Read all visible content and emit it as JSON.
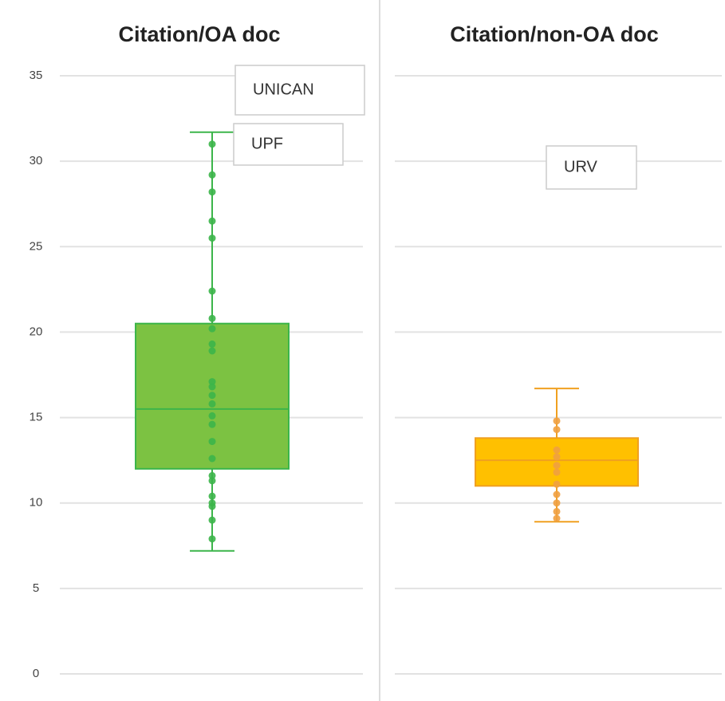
{
  "chart_data": [
    {
      "type": "box",
      "title": "Citation/OA doc",
      "ylim": [
        0,
        35
      ],
      "yticks": [
        0,
        5,
        10,
        15,
        20,
        25,
        30,
        35
      ],
      "grid": true,
      "color": "#7cc242",
      "edge_color": "#3cb54a",
      "point_color": "#3cb54a",
      "q1": 12,
      "median": 15.5,
      "q3": 20.5,
      "whisker_low": 7.2,
      "whisker_high": 31.7,
      "points": [
        31,
        29.2,
        28.2,
        26.5,
        25.5,
        22.4,
        20.8,
        20.2,
        19.3,
        18.9,
        17.1,
        16.8,
        16.3,
        15.8,
        15.1,
        14.6,
        13.6,
        12.6,
        11.6,
        11.3,
        10.4,
        10,
        9.8,
        9,
        7.9
      ],
      "annotations": [
        "UNICAN",
        "UPF"
      ]
    },
    {
      "type": "box",
      "title": "Citation/non-OA doc",
      "ylim": [
        0,
        35
      ],
      "yticks": [
        0,
        5,
        10,
        15,
        20,
        25,
        30,
        35
      ],
      "grid": true,
      "color": "#ffc000",
      "edge_color": "#f0a020",
      "point_color": "#f0a040",
      "q1": 11,
      "median": 12.5,
      "q3": 13.8,
      "whisker_low": 8.9,
      "whisker_high": 16.7,
      "points": [
        14.8,
        14.3,
        13.1,
        12.7,
        12.2,
        11.8,
        11.1,
        10.5,
        10,
        9.5,
        9.1
      ],
      "annotations": [
        "URV"
      ]
    }
  ]
}
